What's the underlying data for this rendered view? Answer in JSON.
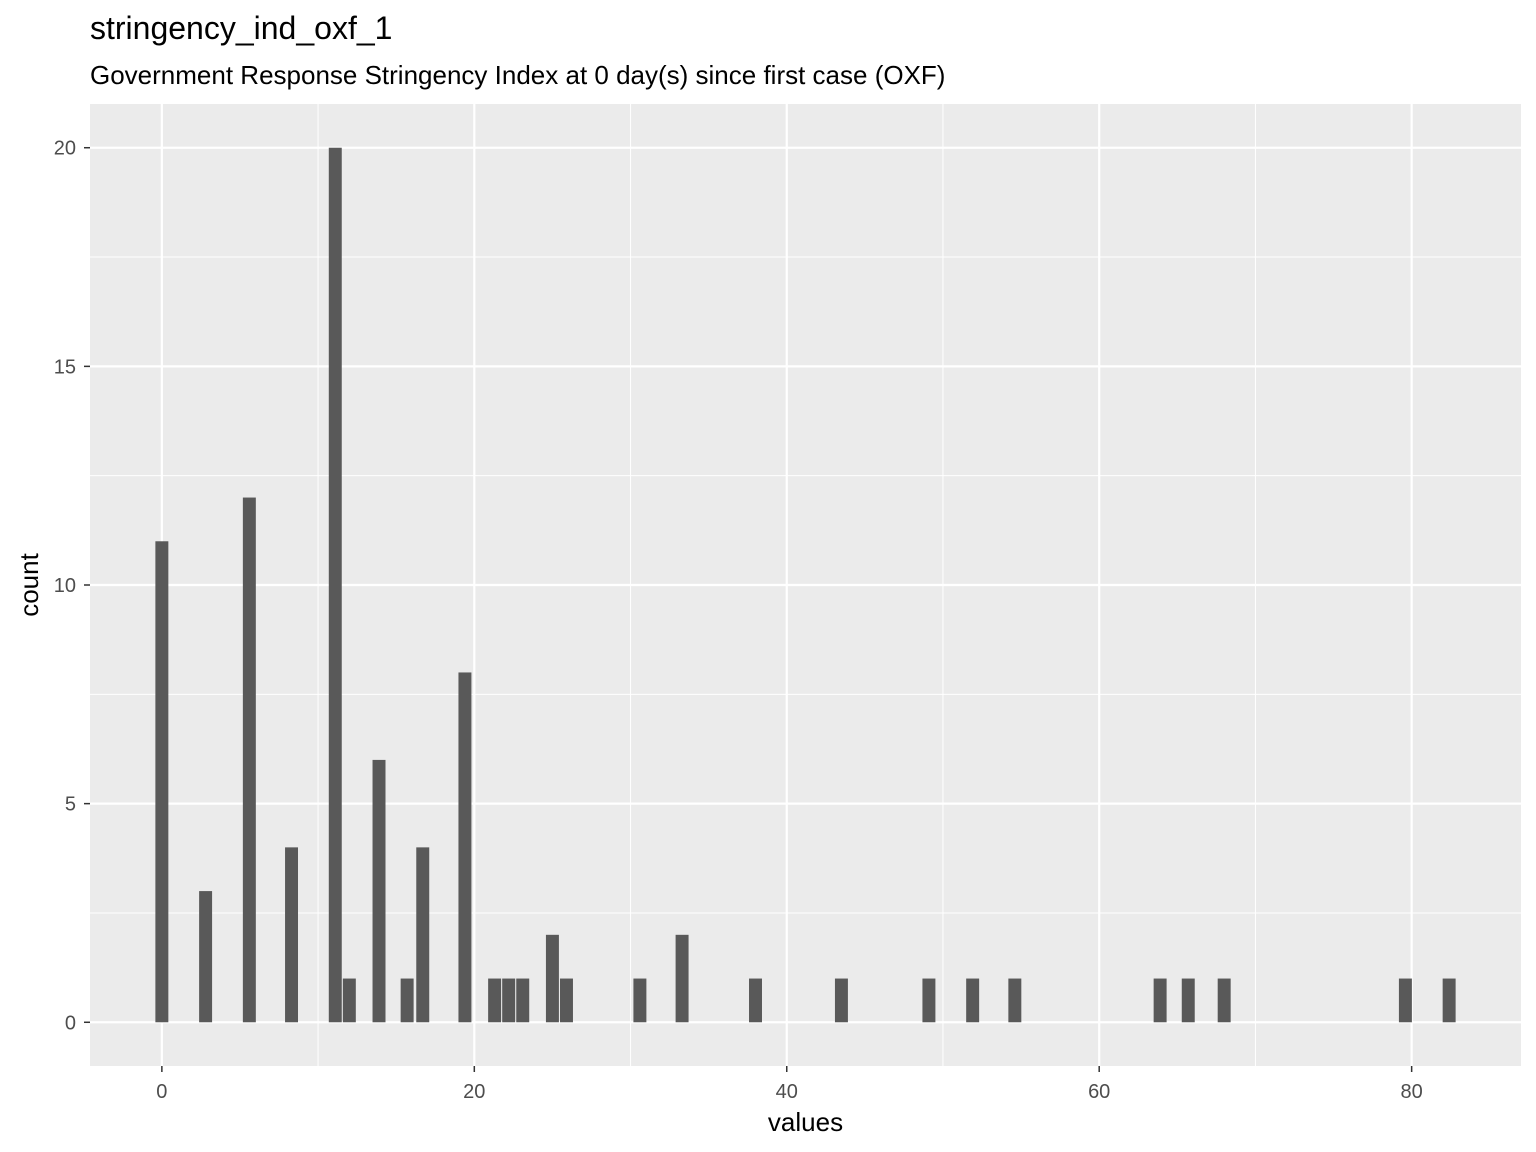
{
  "chart_data": {
    "type": "bar",
    "title": "stringency_ind_oxf_1",
    "subtitle": "Government Response Stringency Index at 0 day(s) since first case (OXF)",
    "xlabel": "values",
    "ylabel": "count",
    "xlim": [
      -4.6,
      87.0
    ],
    "ylim": [
      -1.0,
      21.0
    ],
    "xticks": [
      0,
      20,
      40,
      60,
      80
    ],
    "yticks": [
      0,
      5,
      10,
      15,
      20
    ],
    "x_minor_gridlines": [
      10,
      30,
      50,
      70
    ],
    "y_minor_gridlines": [
      2.5,
      7.5,
      12.5,
      17.5
    ],
    "grid": true,
    "colors": {
      "bar": "#595959",
      "panel": "#ebebeb",
      "grid": "#ffffff"
    },
    "bins": [
      {
        "x": 0.0,
        "count": 11
      },
      {
        "x": 2.8,
        "count": 3
      },
      {
        "x": 5.6,
        "count": 12
      },
      {
        "x": 8.3,
        "count": 4
      },
      {
        "x": 11.1,
        "count": 20
      },
      {
        "x": 12.0,
        "count": 1
      },
      {
        "x": 13.9,
        "count": 6
      },
      {
        "x": 15.7,
        "count": 1
      },
      {
        "x": 16.7,
        "count": 4
      },
      {
        "x": 19.4,
        "count": 8
      },
      {
        "x": 21.3,
        "count": 1
      },
      {
        "x": 22.2,
        "count": 1
      },
      {
        "x": 23.1,
        "count": 1
      },
      {
        "x": 25.0,
        "count": 2
      },
      {
        "x": 25.9,
        "count": 1
      },
      {
        "x": 30.6,
        "count": 1
      },
      {
        "x": 33.3,
        "count": 2
      },
      {
        "x": 38.0,
        "count": 1
      },
      {
        "x": 43.5,
        "count": 1
      },
      {
        "x": 49.1,
        "count": 1
      },
      {
        "x": 51.9,
        "count": 1
      },
      {
        "x": 54.6,
        "count": 1
      },
      {
        "x": 63.9,
        "count": 1
      },
      {
        "x": 65.7,
        "count": 1
      },
      {
        "x": 68.0,
        "count": 1
      },
      {
        "x": 79.6,
        "count": 1
      },
      {
        "x": 82.4,
        "count": 1
      }
    ],
    "bin_width": 0.83
  }
}
